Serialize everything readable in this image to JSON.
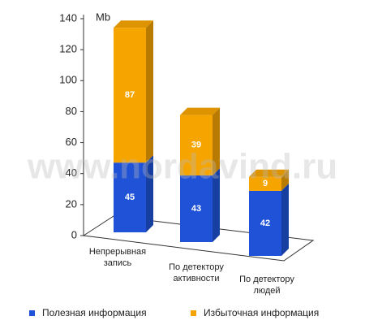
{
  "chart_data": {
    "type": "bar3d_stacked",
    "y_unit": "Mb",
    "watermark": "www.nordavind.ru",
    "categories": [
      "Непрерывная запись",
      "По детектору активности",
      "По детектору людей"
    ],
    "series": [
      {
        "name": "Полезная информация",
        "color": "#1f52d6",
        "values": [
          45,
          43,
          42
        ]
      },
      {
        "name": "Избыточная информация",
        "color": "#f5a400",
        "values": [
          87,
          39,
          9
        ]
      }
    ],
    "ylim": [
      0,
      140
    ],
    "yticks": [
      0,
      20,
      40,
      60,
      80,
      100,
      120,
      140
    ]
  }
}
